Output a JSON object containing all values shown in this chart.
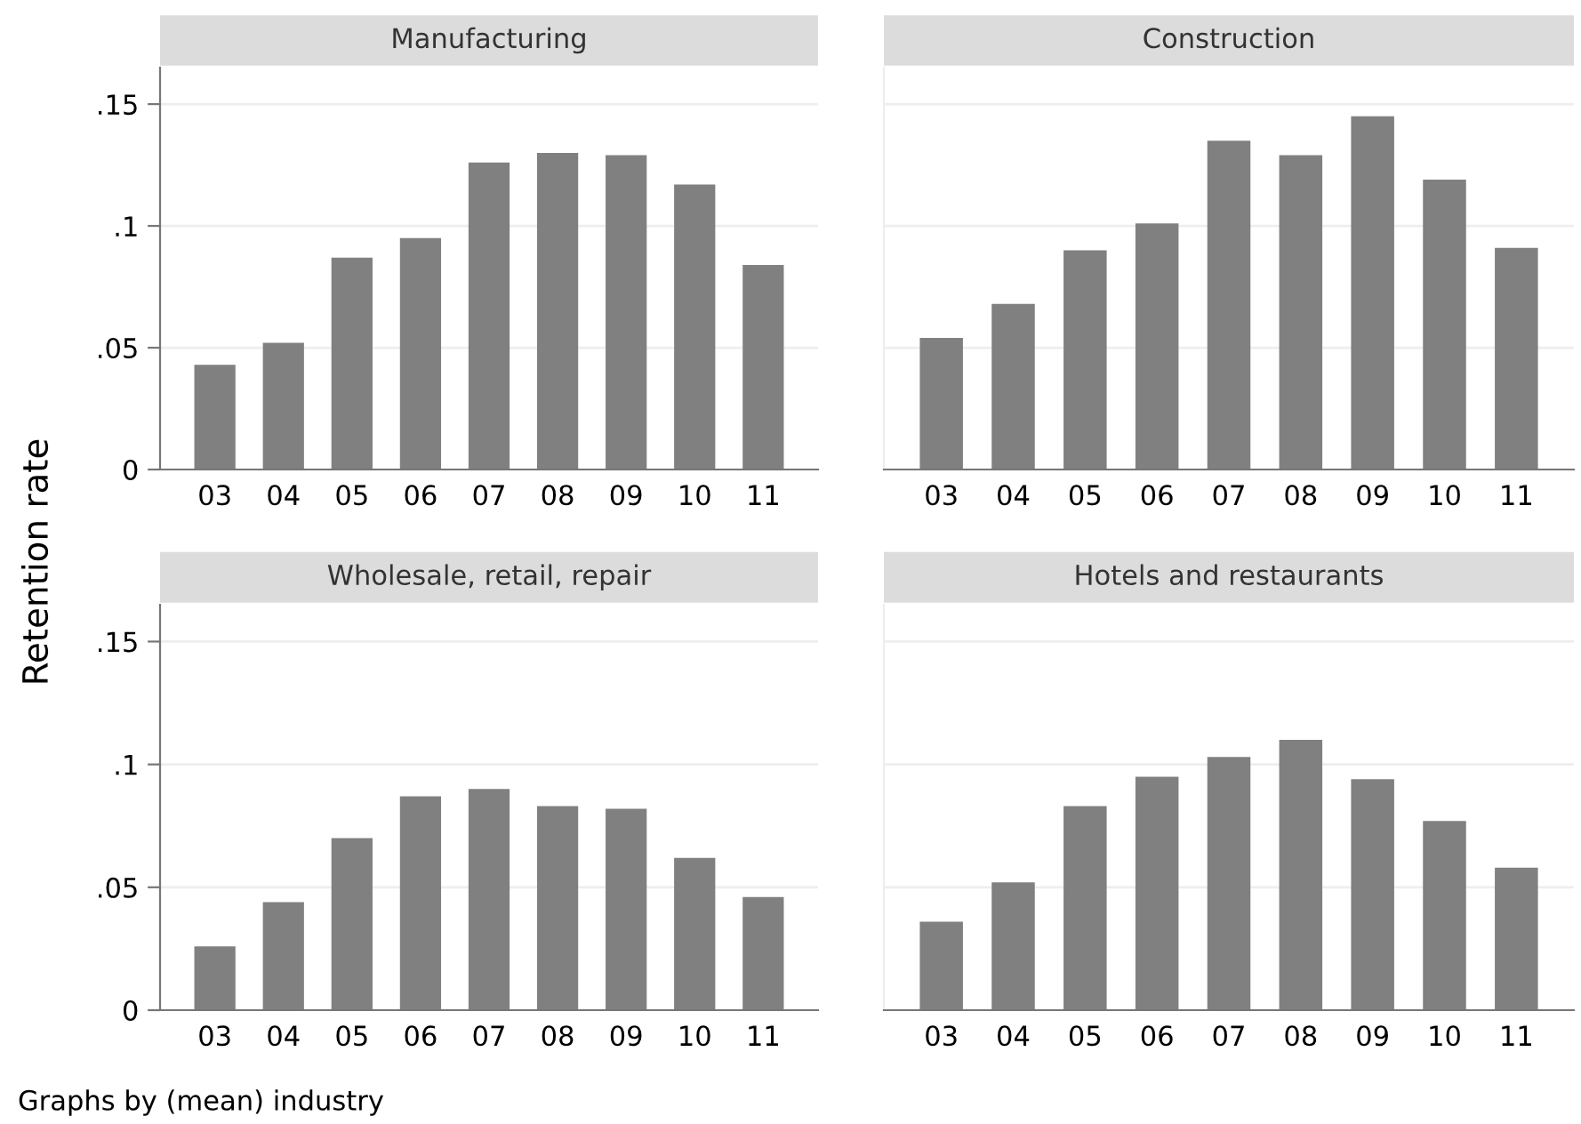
{
  "chart_data": [
    {
      "type": "bar",
      "title": "Manufacturing",
      "ylabel": "Retention rate",
      "categories": [
        "03",
        "04",
        "05",
        "06",
        "07",
        "08",
        "09",
        "10",
        "11"
      ],
      "series": [
        {
          "color": "#808080",
          "values": [
            0.043,
            0.052,
            0.087,
            0.095,
            0.126,
            0.13,
            0.129,
            0.117,
            0.084
          ]
        }
      ],
      "ylim": [
        0,
        0.165
      ],
      "yticks": [
        {
          "value": 0,
          "label": "0"
        },
        {
          "value": 0.05,
          "label": ".05"
        },
        {
          "value": 0.1,
          "label": ".1"
        },
        {
          "value": 0.15,
          "label": ".15"
        }
      ],
      "grid": "y",
      "legend": false
    },
    {
      "type": "bar",
      "title": "Construction",
      "categories": [
        "03",
        "04",
        "05",
        "06",
        "07",
        "08",
        "09",
        "10",
        "11"
      ],
      "series": [
        {
          "color": "#808080",
          "values": [
            0.054,
            0.068,
            0.09,
            0.101,
            0.135,
            0.129,
            0.145,
            0.119,
            0.091
          ]
        }
      ],
      "ylim": [
        0,
        0.165
      ],
      "yticks": [
        0,
        0.05,
        0.1,
        0.15
      ],
      "grid": "y",
      "legend": false,
      "tick_labels": "x"
    },
    {
      "type": "bar",
      "title": "Wholesale, retail, repair",
      "categories": [
        "03",
        "04",
        "05",
        "06",
        "07",
        "08",
        "09",
        "10",
        "11"
      ],
      "series": [
        {
          "color": "#808080",
          "values": [
            0.026,
            0.044,
            0.07,
            0.087,
            0.09,
            0.083,
            0.082,
            0.062,
            0.046
          ]
        }
      ],
      "ylim": [
        0,
        0.165
      ],
      "yticks": [
        {
          "value": 0,
          "label": "0"
        },
        {
          "value": 0.05,
          "label": ".05"
        },
        {
          "value": 0.1,
          "label": ".1"
        },
        {
          "value": 0.15,
          "label": ".15"
        }
      ],
      "grid": "y",
      "legend": false,
      "annotations": [
        "Graphs by (mean) industry"
      ]
    },
    {
      "type": "bar",
      "title": "Hotels and restaurants",
      "categories": [
        "03",
        "04",
        "05",
        "06",
        "07",
        "08",
        "09",
        "10",
        "11"
      ],
      "series": [
        {
          "color": "#808080",
          "values": [
            0.036,
            0.052,
            0.083,
            0.095,
            0.103,
            0.11,
            0.094,
            0.077,
            0.058
          ]
        }
      ],
      "ylim": [
        0,
        0.165
      ],
      "yticks": [
        0,
        0.05,
        0.1,
        0.15
      ],
      "grid": "y",
      "legend": false,
      "tick_labels": "x"
    }
  ]
}
